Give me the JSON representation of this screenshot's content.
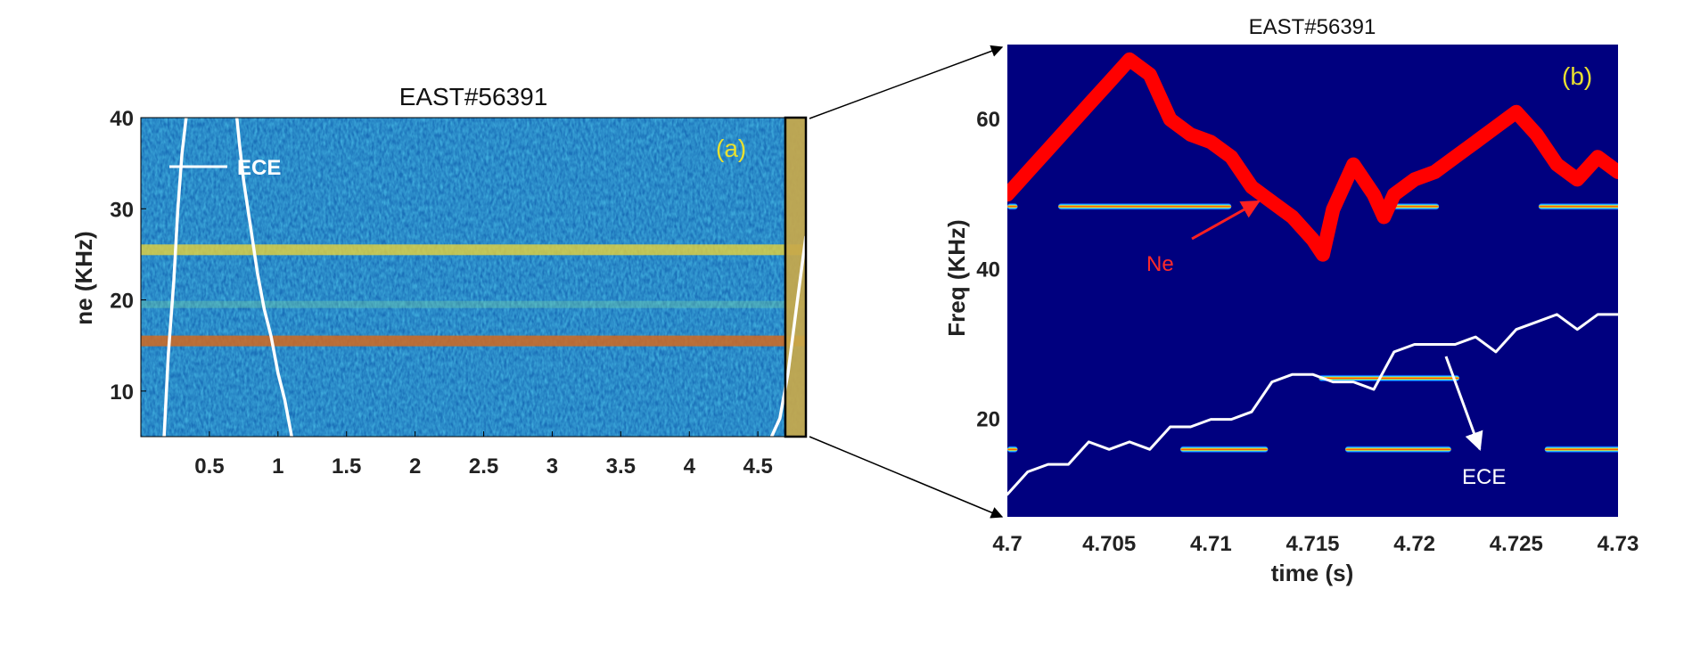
{
  "chart_data": [
    {
      "panel": "(a)",
      "type": "heatmap",
      "title": "EAST#56391",
      "xlabel": "",
      "ylabel": "ne (KHz)",
      "xlim": [
        0,
        4.85
      ],
      "ylim": [
        5,
        40
      ],
      "xticks": [
        "0.5",
        "1",
        "1.5",
        "2",
        "2.5",
        "3",
        "3.5",
        "4",
        "4.5"
      ],
      "xtick_values": [
        0.5,
        1,
        1.5,
        2,
        2.5,
        3,
        3.5,
        4,
        4.5
      ],
      "yticks": [
        "10",
        "20",
        "30",
        "40"
      ],
      "ytick_values": [
        10,
        20,
        30,
        40
      ],
      "colormap": "jet",
      "bands": [
        {
          "freq": 25.5,
          "level": "high"
        },
        {
          "freq": 15.5,
          "level": "highest"
        },
        {
          "freq": 19.5,
          "level": "medium"
        }
      ],
      "highlight_window": {
        "x": [
          4.7,
          4.85
        ],
        "color": "#c8a84a"
      },
      "series": [
        {
          "name": "ECE",
          "color": "#ffffff",
          "x": [
            0.17,
            0.2,
            0.24,
            0.27,
            0.3,
            0.33
          ],
          "y": [
            5,
            14,
            22,
            30,
            36,
            40
          ]
        },
        {
          "color": "#ffffff",
          "x": [
            0.7,
            0.72,
            0.75,
            0.8,
            0.85,
            0.9,
            0.95,
            1.0,
            1.05,
            1.1
          ],
          "y": [
            40,
            37,
            33,
            28,
            23,
            19,
            16,
            12,
            9,
            5
          ]
        },
        {
          "color": "#ffffff",
          "x": [
            4.6,
            4.66,
            4.72,
            4.78,
            4.85
          ],
          "y": [
            5,
            7,
            12,
            19,
            27
          ]
        }
      ],
      "annotations": [
        "ECE",
        "(a)"
      ],
      "annotation_ece": "ECE",
      "panel_label": "(a)"
    },
    {
      "panel": "(b)",
      "type": "heatmap",
      "title": "EAST#56391",
      "xlabel": "time (s)",
      "ylabel": "Freq (KHz)",
      "xlim": [
        4.7,
        4.73
      ],
      "ylim": [
        7,
        70
      ],
      "xticks": [
        "4.7",
        "4.705",
        "4.71",
        "4.715",
        "4.72",
        "4.725",
        "4.73"
      ],
      "xtick_values": [
        4.7,
        4.705,
        4.71,
        4.715,
        4.72,
        4.725,
        4.73
      ],
      "yticks": [
        "20",
        "40",
        "60"
      ],
      "ytick_values": [
        20,
        40,
        60
      ],
      "background_color": "#00007f",
      "bands": [
        {
          "freq": 48.4,
          "segments": [
            [
              4.7,
              4.7005
            ],
            [
              4.7025,
              4.711
            ],
            [
              4.7182,
              4.7212
            ],
            [
              4.7261,
              4.731
            ]
          ]
        },
        {
          "freq": 16.0,
          "segments": [
            [
              4.7,
              4.7005
            ],
            [
              4.7085,
              4.7128
            ],
            [
              4.7166,
              4.7218
            ],
            [
              4.7264,
              4.731
            ]
          ]
        },
        {
          "freq": 25.5,
          "segments": [
            [
              4.7153,
              4.7222
            ]
          ]
        }
      ],
      "series": [
        {
          "name": "Ne",
          "color": "#ff0000",
          "x": [
            4.7,
            4.701,
            4.702,
            4.703,
            4.704,
            4.705,
            4.706,
            4.707,
            4.708,
            4.709,
            4.71,
            4.711,
            4.712,
            4.713,
            4.714,
            4.715,
            4.7155,
            4.716,
            4.717,
            4.718,
            4.7185,
            4.719,
            4.72,
            4.721,
            4.722,
            4.723,
            4.724,
            4.725,
            4.726,
            4.727,
            4.728,
            4.729,
            4.73
          ],
          "y": [
            50,
            53,
            56,
            59,
            62,
            65,
            68,
            66,
            60,
            58,
            57,
            55,
            51,
            49,
            47,
            44,
            42,
            48,
            54,
            50,
            47,
            50,
            52,
            53,
            55,
            57,
            59,
            61,
            58,
            54,
            52,
            55,
            53
          ]
        },
        {
          "name": "ECE",
          "color": "#ffffff",
          "x": [
            4.7,
            4.701,
            4.702,
            4.703,
            4.704,
            4.705,
            4.706,
            4.707,
            4.708,
            4.709,
            4.71,
            4.711,
            4.712,
            4.713,
            4.714,
            4.715,
            4.716,
            4.717,
            4.718,
            4.719,
            4.72,
            4.721,
            4.722,
            4.723,
            4.724,
            4.725,
            4.726,
            4.727,
            4.728,
            4.729,
            4.73
          ],
          "y": [
            10,
            13,
            14,
            14,
            17,
            16,
            17,
            16,
            19,
            19,
            20,
            20,
            21,
            25,
            26,
            26,
            25,
            25,
            24,
            29,
            30,
            30,
            30,
            31,
            29,
            32,
            33,
            34,
            32,
            34,
            34
          ]
        }
      ],
      "annotations": [
        "Ne",
        "ECE",
        "(b)"
      ],
      "annotation_ne": "Ne",
      "annotation_ece": "ECE",
      "panel_label": "(b)"
    }
  ]
}
